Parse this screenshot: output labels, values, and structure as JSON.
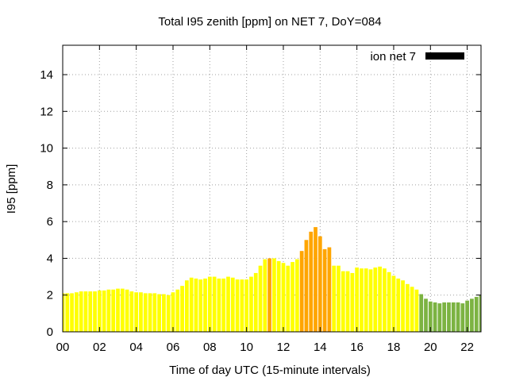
{
  "chart_data": {
    "type": "bar",
    "title": "Total I95 zenith [ppm] on NET 7, DoY=084",
    "xlabel": "Time of day UTC (15-minute intervals)",
    "ylabel": "I95 [ppm]",
    "x_ticks": [
      "00",
      "02",
      "04",
      "06",
      "08",
      "10",
      "12",
      "14",
      "16",
      "18",
      "20",
      "22"
    ],
    "y_ticks": [
      "0",
      "2",
      "4",
      "6",
      "8",
      "10",
      "12",
      "14"
    ],
    "xlim": [
      0,
      22.75
    ],
    "ylim": [
      0,
      15.6
    ],
    "grid": true,
    "legend": {
      "label": "ion net 7",
      "color": "#000000",
      "placement": "top-right"
    },
    "bar_colors": {
      "yellow": "#ffff00",
      "orange": "#ffa500",
      "green": "#7cb342"
    },
    "series": [
      {
        "values": [
          2.1,
          2.1,
          2.1,
          2.15,
          2.2,
          2.2,
          2.2,
          2.2,
          2.25,
          2.25,
          2.3,
          2.3,
          2.35,
          2.35,
          2.3,
          2.2,
          2.15,
          2.15,
          2.1,
          2.1,
          2.1,
          2.05,
          2.05,
          2.0,
          2.15,
          2.3,
          2.5,
          2.8,
          2.95,
          2.9,
          2.85,
          2.9,
          3.0,
          3.0,
          2.9,
          2.9,
          3.0,
          2.95,
          2.85,
          2.85,
          2.85,
          3.0,
          3.2,
          3.6,
          3.95,
          4.0,
          4.0,
          3.85,
          3.75,
          3.6,
          3.8,
          3.95,
          4.4,
          5.0,
          5.45,
          5.7,
          5.2,
          4.5,
          4.6,
          3.6,
          3.6,
          3.3,
          3.3,
          3.2,
          3.5,
          3.45,
          3.45,
          3.4,
          3.5,
          3.55,
          3.45,
          3.25,
          3.05,
          2.9,
          2.8,
          2.6,
          2.45,
          2.3,
          2.05,
          1.8,
          1.65,
          1.6,
          1.55,
          1.6,
          1.6,
          1.6,
          1.6,
          1.55,
          1.7,
          1.8,
          1.9,
          2.0
        ],
        "colors": [
          "yellow",
          "yellow",
          "yellow",
          "yellow",
          "yellow",
          "yellow",
          "yellow",
          "yellow",
          "yellow",
          "yellow",
          "yellow",
          "yellow",
          "yellow",
          "yellow",
          "yellow",
          "yellow",
          "yellow",
          "yellow",
          "yellow",
          "yellow",
          "yellow",
          "yellow",
          "yellow",
          "yellow",
          "yellow",
          "yellow",
          "yellow",
          "yellow",
          "yellow",
          "yellow",
          "yellow",
          "yellow",
          "yellow",
          "yellow",
          "yellow",
          "yellow",
          "yellow",
          "yellow",
          "yellow",
          "yellow",
          "yellow",
          "yellow",
          "yellow",
          "yellow",
          "yellow",
          "orange",
          "yellow",
          "yellow",
          "yellow",
          "yellow",
          "yellow",
          "yellow",
          "orange",
          "orange",
          "orange",
          "orange",
          "orange",
          "orange",
          "orange",
          "yellow",
          "yellow",
          "yellow",
          "yellow",
          "yellow",
          "yellow",
          "yellow",
          "yellow",
          "yellow",
          "yellow",
          "yellow",
          "yellow",
          "yellow",
          "yellow",
          "yellow",
          "yellow",
          "yellow",
          "yellow",
          "yellow",
          "green",
          "green",
          "green",
          "green",
          "green",
          "green",
          "green",
          "green",
          "green",
          "green",
          "green",
          "green",
          "green",
          "green"
        ]
      }
    ]
  }
}
